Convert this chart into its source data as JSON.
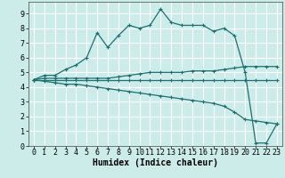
{
  "xlabel": "Humidex (Indice chaleur)",
  "background_color": "#ccecea",
  "grid_color": "#ffffff",
  "line_color": "#1a7070",
  "series": [
    {
      "x": [
        0,
        1,
        2,
        3,
        4,
        5,
        6,
        7,
        8,
        9,
        10,
        11,
        12,
        13,
        14,
        15,
        16,
        17,
        18,
        19,
        20,
        21,
        22,
        23
      ],
      "y": [
        4.5,
        4.8,
        4.8,
        5.2,
        5.5,
        6.0,
        7.7,
        6.7,
        7.5,
        8.2,
        8.0,
        8.2,
        9.3,
        8.4,
        8.2,
        8.2,
        8.2,
        7.8,
        8.0,
        7.5,
        5.0,
        0.2,
        0.2,
        1.5
      ]
    },
    {
      "x": [
        0,
        1,
        2,
        3,
        4,
        5,
        6,
        7,
        8,
        9,
        10,
        11,
        12,
        13,
        14,
        15,
        16,
        17,
        18,
        19,
        20,
        21,
        22,
        23
      ],
      "y": [
        4.5,
        4.6,
        4.6,
        4.6,
        4.6,
        4.6,
        4.6,
        4.6,
        4.7,
        4.8,
        4.9,
        5.0,
        5.0,
        5.0,
        5.0,
        5.1,
        5.1,
        5.1,
        5.2,
        5.3,
        5.4,
        5.4,
        5.4,
        5.4
      ]
    },
    {
      "x": [
        0,
        1,
        2,
        3,
        4,
        5,
        6,
        7,
        8,
        9,
        10,
        11,
        12,
        13,
        14,
        15,
        16,
        17,
        18,
        19,
        20,
        21,
        22,
        23
      ],
      "y": [
        4.5,
        4.5,
        4.5,
        4.5,
        4.5,
        4.5,
        4.5,
        4.5,
        4.5,
        4.5,
        4.5,
        4.5,
        4.5,
        4.5,
        4.5,
        4.5,
        4.5,
        4.5,
        4.5,
        4.5,
        4.5,
        4.5,
        4.5,
        4.5
      ]
    },
    {
      "x": [
        0,
        1,
        2,
        3,
        4,
        5,
        6,
        7,
        8,
        9,
        10,
        11,
        12,
        13,
        14,
        15,
        16,
        17,
        18,
        19,
        20,
        21,
        22,
        23
      ],
      "y": [
        4.5,
        4.4,
        4.3,
        4.2,
        4.2,
        4.1,
        4.0,
        3.9,
        3.8,
        3.7,
        3.6,
        3.5,
        3.4,
        3.3,
        3.2,
        3.1,
        3.0,
        2.9,
        2.7,
        2.3,
        1.8,
        1.7,
        1.6,
        1.5
      ]
    }
  ],
  "xlim": [
    -0.5,
    23.5
  ],
  "ylim": [
    0,
    9.8
  ],
  "xticks": [
    0,
    1,
    2,
    3,
    4,
    5,
    6,
    7,
    8,
    9,
    10,
    11,
    12,
    13,
    14,
    15,
    16,
    17,
    18,
    19,
    20,
    21,
    22,
    23
  ],
  "yticks": [
    0,
    1,
    2,
    3,
    4,
    5,
    6,
    7,
    8,
    9
  ],
  "marker": "+",
  "markersize": 3.5,
  "linewidth": 0.9,
  "tick_fontsize": 6.0,
  "xlabel_fontsize": 7.0
}
